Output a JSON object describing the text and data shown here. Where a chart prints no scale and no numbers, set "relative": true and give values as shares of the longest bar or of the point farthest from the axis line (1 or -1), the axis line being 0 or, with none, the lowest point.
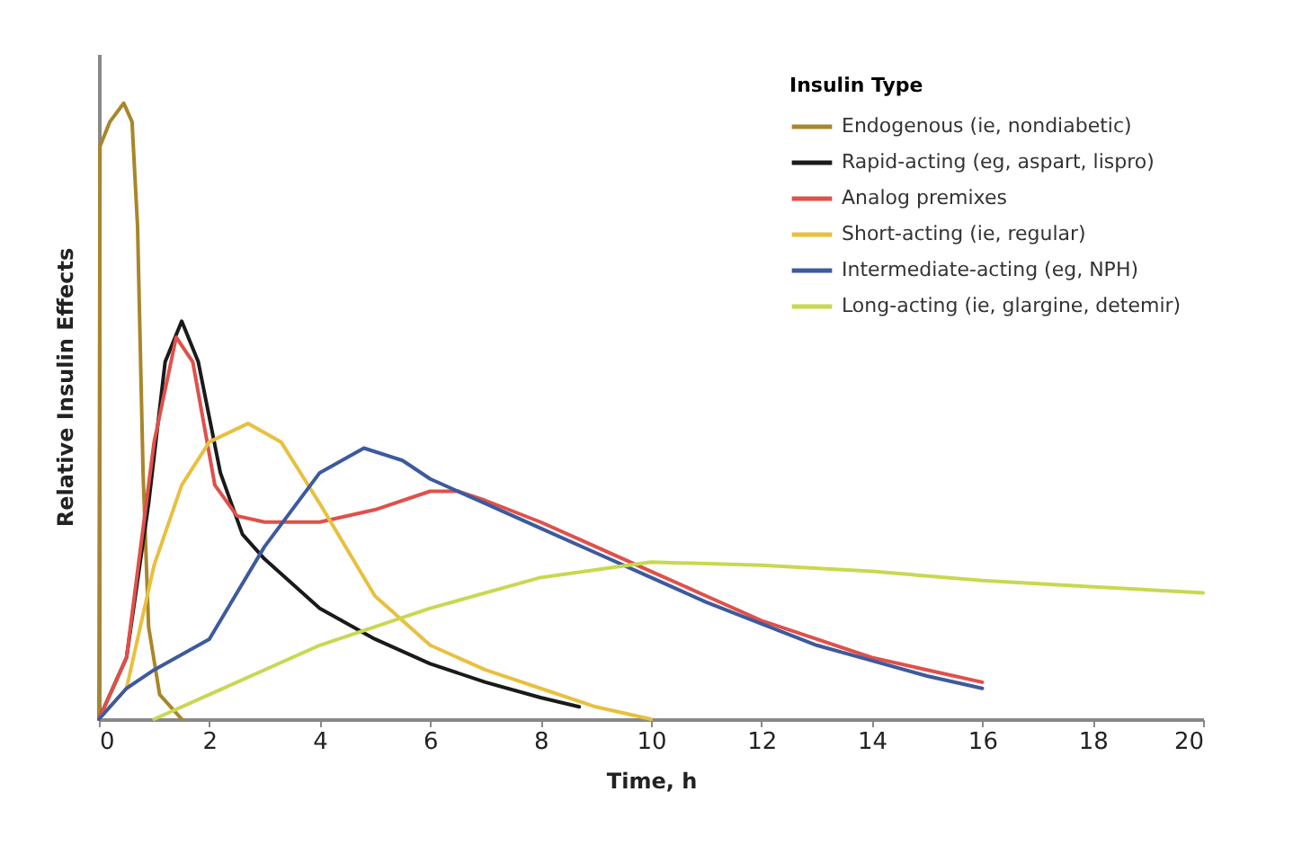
{
  "chart_data": {
    "type": "line",
    "relative": true,
    "xlabel": "Time, h",
    "ylabel": "Relative Insulin Effects",
    "legend_title": "Insulin Type",
    "legend": "top right",
    "grid": false,
    "marker": "none",
    "line_style": "solid",
    "xlim": [
      0,
      20
    ],
    "xticks": [
      0,
      2,
      4,
      6,
      8,
      10,
      12,
      14,
      16,
      18,
      20
    ],
    "series": [
      {
        "name": "Endogenous (ie, nondiabetic)",
        "color": "#a8862a",
        "x": [
          0,
          0.02,
          0.2,
          0.45,
          0.6,
          0.7,
          0.8,
          0.9,
          1.1,
          1.5
        ],
        "values": [
          0,
          0.93,
          0.97,
          1,
          0.97,
          0.8,
          0.4,
          0.15,
          0.04,
          0
        ]
      },
      {
        "name": "Rapid-acting (eg, aspart, lispro)",
        "color": "#1a1a1a",
        "x": [
          0,
          0.5,
          0.9,
          1.2,
          1.5,
          1.8,
          2.2,
          2.6,
          3,
          4,
          5,
          6,
          7,
          8,
          8.7
        ],
        "values": [
          0,
          0.1,
          0.35,
          0.58,
          0.646,
          0.58,
          0.4,
          0.3,
          0.26,
          0.18,
          0.13,
          0.09,
          0.06,
          0.035,
          0.02
        ]
      },
      {
        "name": "Analog premixes",
        "color": "#e0504a",
        "x": [
          0,
          0.5,
          1,
          1.4,
          1.7,
          2.1,
          2.5,
          3,
          4,
          5,
          6,
          6.5,
          7,
          8,
          9,
          10,
          11,
          12,
          13,
          14,
          15,
          16
        ],
        "values": [
          0,
          0.1,
          0.45,
          0.62,
          0.58,
          0.38,
          0.33,
          0.32,
          0.32,
          0.34,
          0.37,
          0.37,
          0.355,
          0.32,
          0.28,
          0.24,
          0.2,
          0.16,
          0.13,
          0.1,
          0.08,
          0.06
        ]
      },
      {
        "name": "Short-acting (ie, regular)",
        "color": "#e8c040",
        "x": [
          0,
          0.5,
          1,
          1.5,
          2,
          2.7,
          3.3,
          4,
          5,
          6,
          7,
          8,
          9,
          10
        ],
        "values": [
          0,
          0.05,
          0.25,
          0.38,
          0.45,
          0.48,
          0.45,
          0.35,
          0.2,
          0.12,
          0.08,
          0.05,
          0.02,
          0
        ]
      },
      {
        "name": "Intermediate-acting (eg, NPH)",
        "color": "#3d5a9e",
        "x": [
          0,
          0.5,
          1,
          2,
          3,
          4,
          4.8,
          5.5,
          6,
          7,
          8,
          9,
          10,
          11,
          12,
          13,
          14,
          15,
          16
        ],
        "values": [
          0,
          0.05,
          0.08,
          0.13,
          0.28,
          0.4,
          0.44,
          0.42,
          0.39,
          0.35,
          0.31,
          0.27,
          0.23,
          0.19,
          0.155,
          0.12,
          0.095,
          0.07,
          0.05
        ]
      },
      {
        "name": "Long-acting (ie, glargine, detemir)",
        "color": "#c8d850",
        "x": [
          1,
          2,
          4,
          6,
          8,
          10,
          12,
          14,
          16,
          18,
          20
        ],
        "values": [
          0,
          0.04,
          0.12,
          0.18,
          0.23,
          0.255,
          0.25,
          0.24,
          0.225,
          0.215,
          0.205
        ]
      }
    ]
  }
}
